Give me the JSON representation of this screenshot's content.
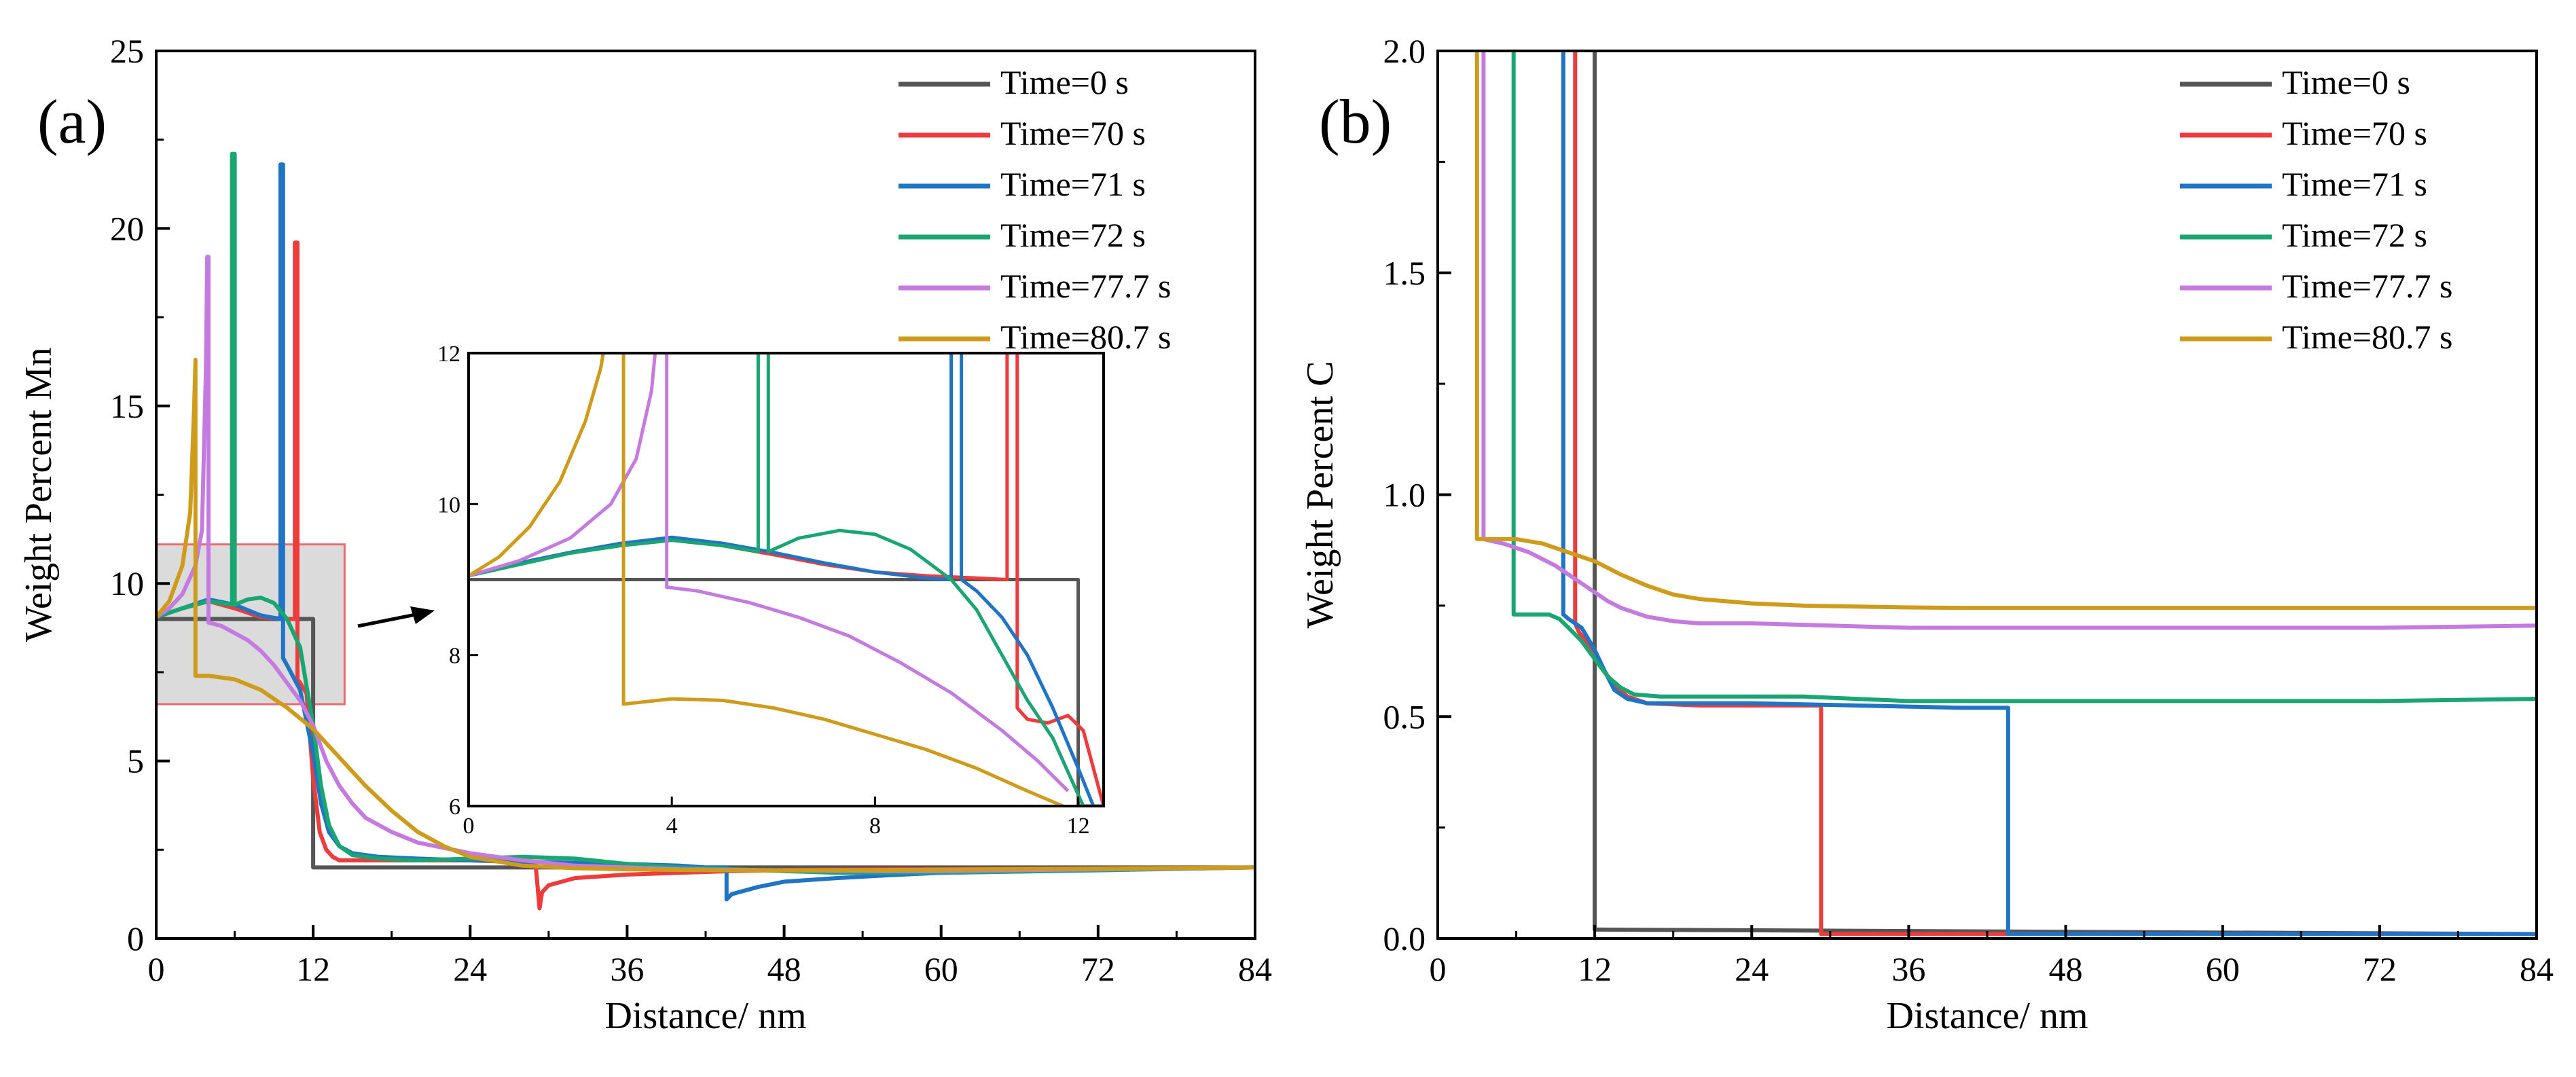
{
  "chart_data": [
    {
      "panel": "(a)",
      "type": "line",
      "xlabel": "Distance/ nm",
      "ylabel": "Weight Percent Mn",
      "xlim": [
        0,
        84
      ],
      "ylim": [
        0,
        25
      ],
      "xticks": [
        0,
        12,
        24,
        36,
        48,
        60,
        72,
        84
      ],
      "yticks": [
        0,
        5,
        10,
        15,
        20,
        25
      ],
      "legend_position": "top-right",
      "highlight_box": {
        "x": [
          0,
          14.4
        ],
        "y": [
          6.6,
          11.1
        ]
      },
      "series": [
        {
          "name": "Time=0 s",
          "color": "#555555",
          "x": [
            0,
            12,
            12,
            84
          ],
          "y": [
            9,
            9,
            2,
            2
          ]
        },
        {
          "name": "Time=70 s",
          "color": "#ee3b3b",
          "x": [
            0,
            2,
            4,
            6,
            8,
            10,
            10.6,
            10.6,
            10.8,
            10.8,
            11.0,
            11.5,
            12,
            12.5,
            13,
            13.5,
            14,
            15,
            17,
            20,
            24,
            28,
            29,
            29.3,
            29.5,
            30,
            32,
            36,
            40,
            44,
            48,
            56,
            60,
            72,
            84
          ],
          "y": [
            9.05,
            9.3,
            9.5,
            9.3,
            9.05,
            9.0,
            9.0,
            19.6,
            19.6,
            7.3,
            7.2,
            6.9,
            4.5,
            3.0,
            2.5,
            2.3,
            2.2,
            2.2,
            2.2,
            2.2,
            2.2,
            2.15,
            2.1,
            0.85,
            1.3,
            1.5,
            1.7,
            1.8,
            1.85,
            1.9,
            1.93,
            1.95,
            1.95,
            1.97,
            2.0
          ]
        },
        {
          "name": "Time=71 s",
          "color": "#1f74c6",
          "x": [
            0,
            2,
            4,
            6,
            8,
            9.5,
            9.5,
            9.7,
            9.7,
            10,
            11,
            12,
            12.6,
            13.2,
            14,
            15,
            17,
            20,
            24,
            30,
            36,
            40,
            42,
            43.6,
            43.6,
            44,
            46,
            48,
            52,
            56,
            60,
            72,
            84
          ],
          "y": [
            9.05,
            9.3,
            9.55,
            9.4,
            9.1,
            9.0,
            21.8,
            21.8,
            7.9,
            7.7,
            7.0,
            5.2,
            3.8,
            3.0,
            2.6,
            2.4,
            2.3,
            2.25,
            2.2,
            2.15,
            2.1,
            2.05,
            2.0,
            2.0,
            1.1,
            1.25,
            1.45,
            1.6,
            1.7,
            1.78,
            1.85,
            1.93,
            2.0
          ]
        },
        {
          "name": "Time=72 s",
          "color": "#1aa672",
          "x": [
            0,
            2,
            4,
            5.8,
            5.8,
            6.0,
            6.0,
            7,
            8,
            9,
            10,
            11,
            12,
            12.6,
            13.2,
            14,
            15,
            17,
            20,
            24,
            28,
            32,
            36,
            40,
            48,
            52,
            56,
            60,
            72,
            84
          ],
          "y": [
            9.05,
            9.3,
            9.5,
            9.4,
            22.1,
            22.1,
            9.4,
            9.55,
            9.6,
            9.45,
            9.0,
            8.2,
            6.0,
            4.3,
            3.2,
            2.6,
            2.35,
            2.25,
            2.2,
            2.25,
            2.3,
            2.25,
            2.1,
            2.0,
            1.9,
            1.85,
            1.85,
            1.85,
            1.92,
            2.0
          ]
        },
        {
          "name": "Time=77.7 s",
          "color": "#c57ae0",
          "x": [
            0,
            1,
            2,
            3,
            3.5,
            3.8,
            3.9,
            4.0,
            4.0,
            5,
            6,
            7,
            8,
            9,
            10,
            11,
            12,
            13,
            14,
            15,
            16,
            18,
            20,
            24,
            28,
            32,
            36,
            40,
            48,
            56,
            60,
            72,
            84
          ],
          "y": [
            9.05,
            9.3,
            9.7,
            10.5,
            11.5,
            16,
            19.2,
            19.2,
            8.9,
            8.8,
            8.6,
            8.4,
            8.1,
            7.7,
            7.2,
            6.7,
            6.0,
            5.0,
            4.3,
            3.8,
            3.4,
            3.0,
            2.7,
            2.4,
            2.2,
            2.05,
            2.0,
            1.95,
            1.92,
            1.9,
            1.9,
            1.95,
            2.0
          ]
        },
        {
          "name": "Time=80.7 s",
          "color": "#cf9b1a",
          "x": [
            0,
            1,
            2,
            2.6,
            2.9,
            3.0,
            3.0,
            4,
            6,
            8,
            10,
            12,
            14,
            16,
            18,
            20,
            22,
            24,
            28,
            32,
            36,
            40,
            44,
            48,
            56,
            60,
            72,
            84
          ],
          "y": [
            9.05,
            9.5,
            10.5,
            12,
            15,
            16.3,
            7.4,
            7.4,
            7.3,
            7.0,
            6.5,
            5.9,
            5.1,
            4.3,
            3.6,
            3.0,
            2.6,
            2.3,
            2.05,
            1.98,
            1.95,
            1.93,
            1.92,
            1.92,
            1.93,
            1.94,
            1.97,
            2.0
          ]
        }
      ]
    },
    {
      "panel": "inset",
      "type": "line",
      "xlim": [
        0,
        12.5
      ],
      "ylim": [
        6,
        12
      ],
      "xticks": [
        0,
        4,
        8,
        12
      ],
      "yticks": [
        6,
        8,
        10,
        12
      ],
      "series": [
        {
          "name": "Time=0 s",
          "color": "#555555",
          "x": [
            0,
            12,
            12,
            12.5
          ],
          "y": [
            9,
            9,
            6,
            6
          ]
        },
        {
          "name": "Time=70 s",
          "color": "#ee3b3b",
          "x": [
            0,
            1,
            2,
            3,
            4,
            5,
            6,
            7,
            8,
            9,
            10,
            10.6,
            10.6,
            10.8,
            10.8,
            11.0,
            11.4,
            11.8,
            12.1,
            12.3,
            12.5
          ],
          "y": [
            9.05,
            9.22,
            9.36,
            9.48,
            9.55,
            9.45,
            9.33,
            9.2,
            9.1,
            9.05,
            9.02,
            9.0,
            12.2,
            12.2,
            7.3,
            7.15,
            7.1,
            7.2,
            7.0,
            6.5,
            6.0
          ]
        },
        {
          "name": "Time=71 s",
          "color": "#1f74c6",
          "x": [
            0,
            1,
            2,
            3,
            4,
            5,
            6,
            7,
            8,
            9,
            9.5,
            9.5,
            9.7,
            9.7,
            10,
            10.5,
            11,
            11.5,
            12.0,
            12.3
          ],
          "y": [
            9.05,
            9.22,
            9.36,
            9.48,
            9.56,
            9.48,
            9.36,
            9.22,
            9.1,
            9.02,
            9.0,
            12.2,
            12.2,
            9.0,
            8.85,
            8.5,
            8.0,
            7.3,
            6.5,
            6.0
          ]
        },
        {
          "name": "Time=72 s",
          "color": "#1aa672",
          "x": [
            0,
            1,
            2,
            3,
            4,
            5,
            5.7,
            5.7,
            5.9,
            5.9,
            6.5,
            7.3,
            8,
            8.7,
            9.5,
            10,
            10.5,
            11,
            11.5,
            12.1
          ],
          "y": [
            9.05,
            9.2,
            9.35,
            9.45,
            9.52,
            9.45,
            9.37,
            12.2,
            12.2,
            9.37,
            9.55,
            9.65,
            9.6,
            9.4,
            9.0,
            8.6,
            8.0,
            7.4,
            6.9,
            6.0
          ]
        },
        {
          "name": "Time=77.7 s",
          "color": "#c57ae0",
          "x": [
            0,
            1,
            2,
            2.8,
            3.3,
            3.6,
            3.7,
            3.9,
            3.9,
            4.5,
            5.5,
            6.5,
            7.5,
            8.5,
            9.5,
            10.5,
            11.2,
            11.8
          ],
          "y": [
            9.05,
            9.25,
            9.55,
            10.0,
            10.6,
            11.5,
            12.2,
            12.2,
            8.9,
            8.85,
            8.7,
            8.5,
            8.25,
            7.9,
            7.5,
            7.0,
            6.6,
            6.2
          ]
        },
        {
          "name": "Time=80.7 s",
          "color": "#cf9b1a",
          "x": [
            0,
            0.6,
            1.2,
            1.8,
            2.3,
            2.6,
            2.7,
            3.05,
            3.05,
            4,
            5,
            6,
            7,
            8,
            9,
            10,
            11,
            11.7
          ],
          "y": [
            9.05,
            9.3,
            9.7,
            10.3,
            11.1,
            11.8,
            12.2,
            12.2,
            7.35,
            7.42,
            7.4,
            7.3,
            7.15,
            6.95,
            6.75,
            6.5,
            6.2,
            6.0
          ]
        }
      ]
    },
    {
      "panel": "(b)",
      "type": "line",
      "xlabel": "Distance/ nm",
      "ylabel": "Weight Percent C",
      "xlim": [
        0,
        84
      ],
      "ylim": [
        0,
        2.0
      ],
      "xticks": [
        0,
        12,
        24,
        36,
        48,
        60,
        72,
        84
      ],
      "yticks": [
        0.0,
        0.5,
        1.0,
        1.5,
        2.0
      ],
      "ytick_labels": [
        "0.0",
        "0.5",
        "1.0",
        "1.5",
        "2.0"
      ],
      "legend_position": "top-right",
      "series": [
        {
          "name": "Time=0 s",
          "color": "#555555",
          "x": [
            12,
            12,
            12.2,
            84
          ],
          "y": [
            2.05,
            0.02,
            0.02,
            0.01
          ]
        },
        {
          "name": "Time=70 s",
          "color": "#ee3b3b",
          "x": [
            10.5,
            10.5,
            10.8,
            11.3,
            12,
            12.8,
            13.5,
            14.5,
            16,
            20,
            24,
            28.3,
            29.3,
            29.3,
            32,
            84
          ],
          "y": [
            2.05,
            0.71,
            0.69,
            0.67,
            0.64,
            0.6,
            0.57,
            0.545,
            0.53,
            0.525,
            0.525,
            0.525,
            0.525,
            0.01,
            0.01,
            0.01
          ]
        },
        {
          "name": "Time=71 s",
          "color": "#1f74c6",
          "x": [
            9.6,
            9.6,
            10,
            11,
            12,
            12.8,
            13.5,
            14.5,
            16,
            20,
            24,
            32,
            40,
            43.6,
            43.6,
            50,
            84
          ],
          "y": [
            2.05,
            0.73,
            0.72,
            0.7,
            0.65,
            0.6,
            0.56,
            0.54,
            0.53,
            0.53,
            0.53,
            0.525,
            0.52,
            0.52,
            0.01,
            0.01,
            0.01
          ]
        },
        {
          "name": "Time=72 s",
          "color": "#1aa672",
          "x": [
            5.8,
            5.8,
            6.5,
            7.5,
            8.5,
            9.3,
            10,
            11,
            12,
            13,
            14,
            15,
            17,
            20,
            24,
            28,
            32,
            36,
            48,
            60,
            72,
            84
          ],
          "y": [
            2.05,
            0.73,
            0.73,
            0.73,
            0.73,
            0.72,
            0.7,
            0.67,
            0.63,
            0.59,
            0.565,
            0.55,
            0.545,
            0.545,
            0.545,
            0.545,
            0.54,
            0.535,
            0.535,
            0.535,
            0.535,
            0.54
          ]
        },
        {
          "name": "Time=77.7 s",
          "color": "#c57ae0",
          "x": [
            3.5,
            3.5,
            5,
            6,
            7,
            8,
            9,
            10,
            11,
            12,
            13,
            14,
            16,
            18,
            20,
            24,
            30,
            36,
            48,
            60,
            72,
            84
          ],
          "y": [
            2.05,
            0.9,
            0.89,
            0.88,
            0.87,
            0.855,
            0.84,
            0.82,
            0.8,
            0.78,
            0.76,
            0.745,
            0.725,
            0.715,
            0.71,
            0.71,
            0.705,
            0.7,
            0.7,
            0.7,
            0.7,
            0.705
          ]
        },
        {
          "name": "Time=80.7 s",
          "color": "#cf9b1a",
          "x": [
            3.0,
            3.0,
            5,
            6,
            8,
            10,
            12,
            14,
            16,
            18,
            20,
            24,
            28,
            32,
            36,
            40,
            48,
            60,
            72,
            84
          ],
          "y": [
            2.05,
            0.9,
            0.9,
            0.9,
            0.89,
            0.87,
            0.85,
            0.82,
            0.795,
            0.775,
            0.765,
            0.755,
            0.75,
            0.748,
            0.746,
            0.745,
            0.745,
            0.745,
            0.745,
            0.745
          ]
        }
      ]
    }
  ]
}
